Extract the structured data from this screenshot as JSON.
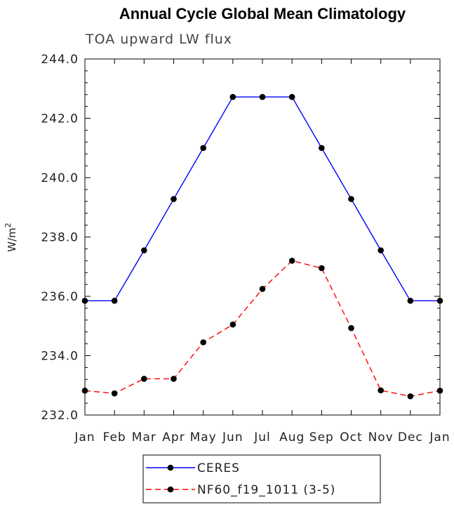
{
  "chart_data": {
    "type": "line",
    "title": "Annual Cycle Global Mean Climatology",
    "subtitle": "TOA upward LW flux",
    "ylabel": "W/m",
    "ylabel_sup": "2",
    "xlabel": "",
    "categories": [
      "Jan",
      "Feb",
      "Mar",
      "Apr",
      "May",
      "Jun",
      "Jul",
      "Aug",
      "Sep",
      "Oct",
      "Nov",
      "Dec",
      "Jan"
    ],
    "ylim": [
      232.0,
      244.0
    ],
    "yticks": [
      232.0,
      234.0,
      236.0,
      238.0,
      240.0,
      242.0,
      244.0
    ],
    "ytick_labels": [
      "232.0",
      "234.0",
      "236.0",
      "238.0",
      "240.0",
      "242.0",
      "244.0"
    ],
    "grid": false,
    "legend_position": "bottom-center",
    "series": [
      {
        "name": "CERES",
        "color": "#0000ff",
        "dash": "solid",
        "marker": "filled-circle",
        "values": [
          235.85,
          235.85,
          237.55,
          239.28,
          241.0,
          242.72,
          242.72,
          242.72,
          241.0,
          239.28,
          237.55,
          235.85,
          235.85
        ]
      },
      {
        "name": "NF60_f19_1011 (3-5)",
        "color": "#ff0000",
        "dash": "dashed",
        "marker": "filled-circle",
        "values": [
          232.82,
          232.73,
          233.22,
          233.22,
          234.45,
          235.05,
          236.25,
          237.2,
          236.95,
          234.93,
          232.83,
          232.63,
          232.82
        ]
      }
    ]
  }
}
